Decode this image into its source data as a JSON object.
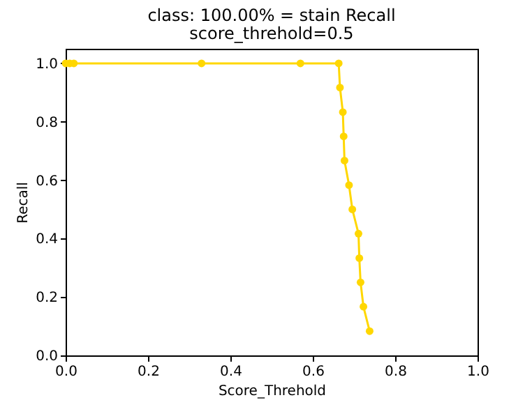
{
  "chart_data": {
    "type": "line",
    "title": "class: 100.00% = stain Recall",
    "subtitle": "score_threhold=0.5",
    "xlabel": "Score_Threhold",
    "ylabel": "Recall",
    "x": [
      0,
      0.01,
      0.02,
      0.33,
      0.57,
      0.663,
      0.666,
      0.673,
      0.675,
      0.677,
      0.688,
      0.696,
      0.711,
      0.713,
      0.716,
      0.723,
      0.738
    ],
    "series": [
      {
        "color": "#ffd700",
        "values": [
          1,
          1,
          1,
          1,
          1,
          1,
          0.917,
          0.833,
          0.75,
          0.667,
          0.583,
          0.5,
          0.417,
          0.333,
          0.25,
          0.167,
          0.083
        ]
      }
    ],
    "xlim": [
      0,
      1
    ],
    "ylim": [
      0,
      1.05
    ],
    "xticks": [
      {
        "value": 0,
        "label": "0.0"
      },
      {
        "value": 0.2,
        "label": "0.2"
      },
      {
        "value": 0.4,
        "label": "0.4"
      },
      {
        "value": 0.6,
        "label": "0.6"
      },
      {
        "value": 0.8,
        "label": "0.8"
      },
      {
        "value": 1,
        "label": "1.0"
      }
    ],
    "yticks": [
      {
        "value": 0,
        "label": "0.0"
      },
      {
        "value": 0.2,
        "label": "0.2"
      },
      {
        "value": 0.4,
        "label": "0.4"
      },
      {
        "value": 0.6,
        "label": "0.6"
      },
      {
        "value": 0.8,
        "label": "0.8"
      },
      {
        "value": 1,
        "label": "1.0"
      }
    ],
    "marker": "circle",
    "line_style": "solid",
    "grid": false
  }
}
